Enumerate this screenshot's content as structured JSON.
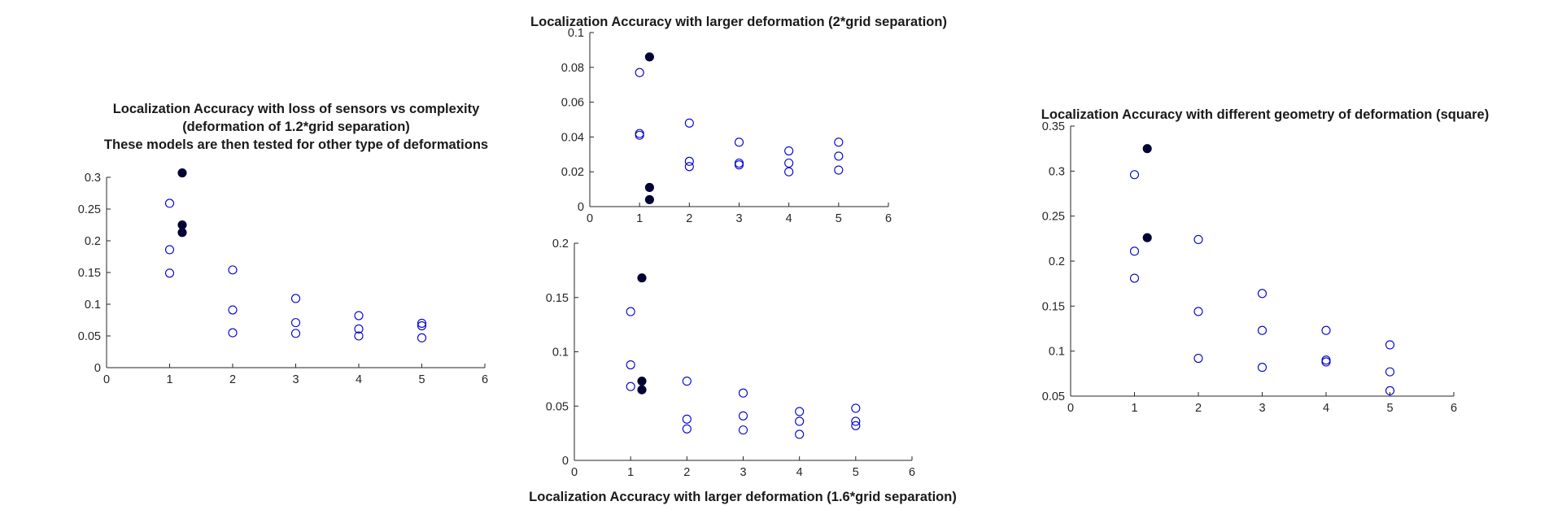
{
  "chart_data": [
    {
      "id": "left",
      "type": "scatter",
      "title": [
        "Localization Accuracy with loss of sensors vs complexity",
        "(deformation of 1.2*grid separation)",
        "These models are then tested for other type of deformations"
      ],
      "title_position": "top",
      "xlim": [
        0,
        6
      ],
      "ylim": [
        0,
        0.3
      ],
      "xticks": [
        0,
        1,
        2,
        3,
        4,
        5,
        6
      ],
      "xtick_labels": [
        "0",
        "1",
        "2",
        "3",
        "4",
        "5",
        "6"
      ],
      "yticks": [
        0,
        0.05,
        0.1,
        0.15,
        0.2,
        0.25,
        0.3
      ],
      "ytick_labels": [
        "0",
        "0.05",
        "0.1",
        "0.15",
        "0.2",
        "0.25",
        "0.3"
      ],
      "grid": false,
      "series": [
        {
          "marker": "open-circle",
          "color": "#0000cc",
          "points": [
            [
              1,
              0.259
            ],
            [
              1,
              0.186
            ],
            [
              1,
              0.149
            ],
            [
              2,
              0.154
            ],
            [
              2,
              0.091
            ],
            [
              2,
              0.055
            ],
            [
              3,
              0.109
            ],
            [
              3,
              0.071
            ],
            [
              3,
              0.054
            ],
            [
              4,
              0.082
            ],
            [
              4,
              0.061
            ],
            [
              4,
              0.05
            ],
            [
              5,
              0.07
            ],
            [
              5,
              0.066
            ],
            [
              5,
              0.047
            ]
          ]
        },
        {
          "marker": "filled-circle",
          "color": "#000033",
          "points": [
            [
              1.2,
              0.307
            ],
            [
              1.2,
              0.225
            ],
            [
              1.2,
              0.213
            ]
          ]
        }
      ]
    },
    {
      "id": "top-middle",
      "type": "scatter",
      "title": [
        "Localization Accuracy with larger deformation (2*grid separation)"
      ],
      "title_position": "top",
      "xlim": [
        0,
        6
      ],
      "ylim": [
        0,
        0.1
      ],
      "xticks": [
        0,
        1,
        2,
        3,
        4,
        5,
        6
      ],
      "xtick_labels": [
        "0",
        "1",
        "2",
        "3",
        "4",
        "5",
        "6"
      ],
      "yticks": [
        0,
        0.02,
        0.04,
        0.06,
        0.08,
        0.1
      ],
      "ytick_labels": [
        "0",
        "0.02",
        "0.04",
        "0.06",
        "0.08",
        "0.1"
      ],
      "grid": false,
      "series": [
        {
          "marker": "open-circle",
          "color": "#0000cc",
          "points": [
            [
              1,
              0.077
            ],
            [
              1,
              0.042
            ],
            [
              1,
              0.041
            ],
            [
              2,
              0.048
            ],
            [
              2,
              0.026
            ],
            [
              2,
              0.023
            ],
            [
              3,
              0.037
            ],
            [
              3,
              0.025
            ],
            [
              3,
              0.024
            ],
            [
              4,
              0.032
            ],
            [
              4,
              0.025
            ],
            [
              4,
              0.02
            ],
            [
              5,
              0.037
            ],
            [
              5,
              0.029
            ],
            [
              5,
              0.021
            ]
          ]
        },
        {
          "marker": "filled-circle",
          "color": "#000033",
          "points": [
            [
              1.2,
              0.086
            ],
            [
              1.2,
              0.011
            ],
            [
              1.2,
              0.004
            ]
          ]
        }
      ]
    },
    {
      "id": "bottom-middle",
      "type": "scatter",
      "title": [
        "Localization Accuracy with larger deformation (1.6*grid separation)"
      ],
      "title_position": "bottom",
      "xlim": [
        0,
        6
      ],
      "ylim": [
        0,
        0.2
      ],
      "xticks": [
        0,
        1,
        2,
        3,
        4,
        5,
        6
      ],
      "xtick_labels": [
        "0",
        "1",
        "2",
        "3",
        "4",
        "5",
        "6"
      ],
      "yticks": [
        0,
        0.05,
        0.1,
        0.15,
        0.2
      ],
      "ytick_labels": [
        "0",
        "0.05",
        "0.1",
        "0.15",
        "0.2"
      ],
      "grid": false,
      "series": [
        {
          "marker": "open-circle",
          "color": "#0000cc",
          "points": [
            [
              1,
              0.137
            ],
            [
              1,
              0.088
            ],
            [
              1,
              0.068
            ],
            [
              2,
              0.073
            ],
            [
              2,
              0.038
            ],
            [
              2,
              0.029
            ],
            [
              3,
              0.062
            ],
            [
              3,
              0.041
            ],
            [
              3,
              0.028
            ],
            [
              4,
              0.045
            ],
            [
              4,
              0.036
            ],
            [
              4,
              0.024
            ],
            [
              5,
              0.048
            ],
            [
              5,
              0.036
            ],
            [
              5,
              0.032
            ]
          ]
        },
        {
          "marker": "filled-circle",
          "color": "#000033",
          "points": [
            [
              1.2,
              0.168
            ],
            [
              1.2,
              0.073
            ],
            [
              1.2,
              0.065
            ]
          ]
        }
      ]
    },
    {
      "id": "right",
      "type": "scatter",
      "title": [
        "Localization Accuracy with different geometry of deformation (square)"
      ],
      "title_position": "top",
      "xlim": [
        0,
        6
      ],
      "ylim": [
        0.05,
        0.35
      ],
      "xticks": [
        0,
        1,
        2,
        3,
        4,
        5,
        6
      ],
      "xtick_labels": [
        "0",
        "1",
        "2",
        "3",
        "4",
        "5",
        "6"
      ],
      "yticks": [
        0.05,
        0.1,
        0.15,
        0.2,
        0.25,
        0.3,
        0.35
      ],
      "ytick_labels": [
        "0.05",
        "0.1",
        "0.15",
        "0.2",
        "0.25",
        "0.3",
        "0.35"
      ],
      "grid": false,
      "series": [
        {
          "marker": "open-circle",
          "color": "#0000cc",
          "points": [
            [
              1,
              0.296
            ],
            [
              1,
              0.211
            ],
            [
              1,
              0.181
            ],
            [
              2,
              0.224
            ],
            [
              2,
              0.144
            ],
            [
              2,
              0.092
            ],
            [
              3,
              0.164
            ],
            [
              3,
              0.123
            ],
            [
              3,
              0.082
            ],
            [
              4,
              0.123
            ],
            [
              4,
              0.09
            ],
            [
              4,
              0.088
            ],
            [
              5,
              0.107
            ],
            [
              5,
              0.077
            ],
            [
              5,
              0.056
            ]
          ]
        },
        {
          "marker": "filled-circle",
          "color": "#000033",
          "points": [
            [
              1.2,
              0.325
            ],
            [
              1.2,
              0.226
            ]
          ]
        }
      ]
    }
  ]
}
